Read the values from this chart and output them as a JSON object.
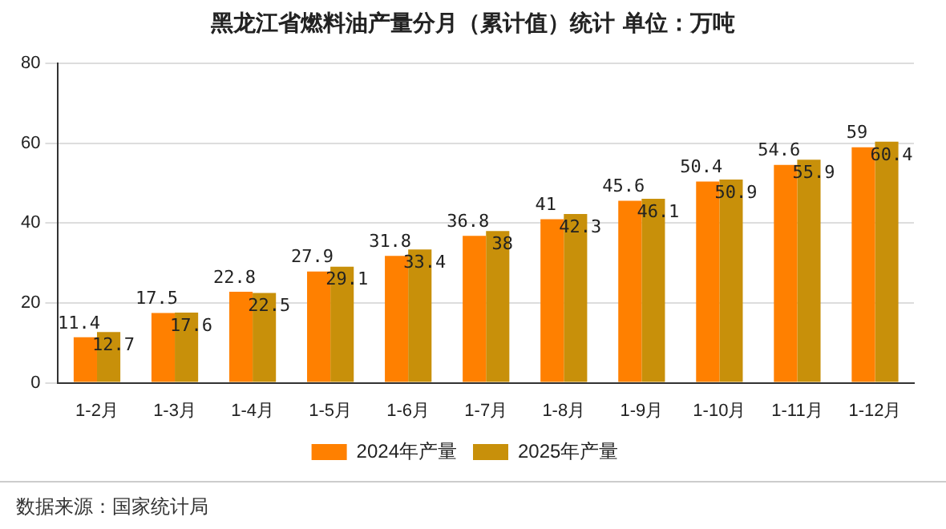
{
  "chart_data": {
    "type": "bar",
    "title": "黑龙江省燃料油产量分月（累计值）统计 单位：万吨",
    "categories": [
      "1-2月",
      "1-3月",
      "1-4月",
      "1-5月",
      "1-6月",
      "1-7月",
      "1-8月",
      "1-9月",
      "1-10月",
      "1-11月",
      "1-12月"
    ],
    "series": [
      {
        "name": "2024年产量",
        "color": "#ff8000",
        "values": [
          11.4,
          17.5,
          22.8,
          27.9,
          31.8,
          36.8,
          41,
          45.6,
          50.4,
          54.6,
          59
        ]
      },
      {
        "name": "2025年产量",
        "color": "#c8900a",
        "values": [
          12.7,
          17.6,
          22.5,
          29.1,
          33.4,
          38,
          42.3,
          46.1,
          50.9,
          55.9,
          60.4
        ]
      }
    ],
    "ylim": [
      0,
      80
    ],
    "yticks": [
      0,
      20,
      40,
      60,
      80
    ],
    "grid": "y",
    "legend": "bottom",
    "data_labels": true,
    "annotations": [
      "数据来源：国家统计局"
    ]
  }
}
